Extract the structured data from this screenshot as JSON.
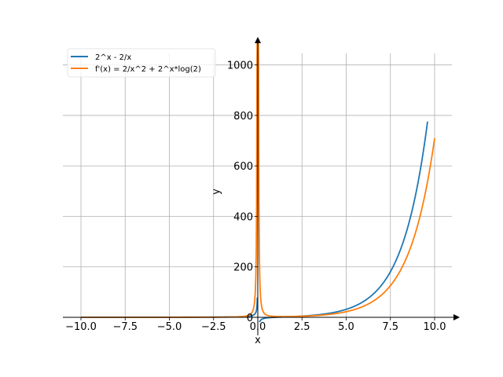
{
  "chart_data": {
    "type": "line",
    "title": "",
    "xlabel": "x",
    "ylabel": "y",
    "xlim": [
      -11,
      11.5
    ],
    "ylim": [
      -5,
      1090
    ],
    "x_ticks": [
      -10.0,
      -7.5,
      -5.0,
      -2.5,
      0.0,
      2.5,
      5.0,
      7.5,
      10.0
    ],
    "x_tick_labels": [
      "−10.0",
      "−7.5",
      "−5.0",
      "−2.5",
      "0.0",
      "2.5",
      "5.0",
      "7.5",
      "10.0"
    ],
    "y_ticks": [
      0,
      200,
      400,
      600,
      800,
      1000
    ],
    "y_tick_labels": [
      "0",
      "200",
      "400",
      "600",
      "800",
      "1000"
    ],
    "grid": true,
    "legend_position": "top-left",
    "series": [
      {
        "name": "2^x - 2/x",
        "color": "#1f77b4",
        "expression": "2^x - 2/x",
        "x_range": [
          -10,
          9.6
        ],
        "points": [
          [
            -10,
            0.2
          ],
          [
            -7.5,
            0.27
          ],
          [
            -5,
            0.43
          ],
          [
            -2.5,
            0.98
          ],
          [
            -1,
            2.5
          ],
          [
            -0.5,
            4.7
          ],
          [
            -0.25,
            8.8
          ],
          [
            -0.1,
            20
          ],
          [
            0.1,
            -19
          ],
          [
            0.5,
            -2.6
          ],
          [
            1,
            0
          ],
          [
            2.5,
            4.9
          ],
          [
            5,
            31.6
          ],
          [
            7.5,
            181
          ],
          [
            9.6,
            776
          ]
        ]
      },
      {
        "name": "f'(x) = 2/x^2 + 2^x*log(2)",
        "color": "#ff7f0e",
        "expression": "2/x^2 + 2^x*log(2)",
        "x_range": [
          -10,
          10
        ],
        "points": [
          [
            -10,
            0.02
          ],
          [
            -5,
            0.1
          ],
          [
            -2.5,
            0.37
          ],
          [
            -1,
            2.35
          ],
          [
            -0.5,
            8.5
          ],
          [
            -0.25,
            32.6
          ],
          [
            -0.1,
            200
          ],
          [
            0.1,
            200
          ],
          [
            0.25,
            33
          ],
          [
            0.5,
            9
          ],
          [
            1,
            3.4
          ],
          [
            2.5,
            4.2
          ],
          [
            5,
            22.3
          ],
          [
            7.5,
            125
          ],
          [
            10,
            710
          ]
        ]
      }
    ]
  }
}
